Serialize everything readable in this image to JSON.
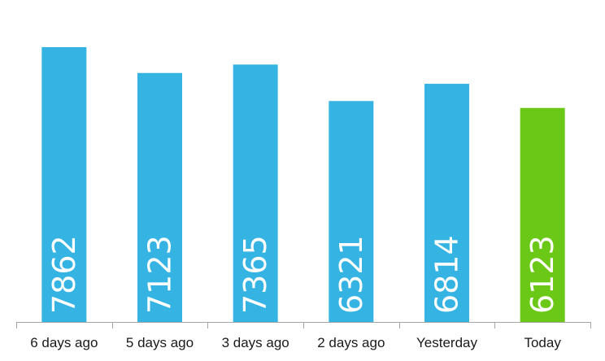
{
  "chart_data": {
    "type": "bar",
    "categories": [
      "6 days ago",
      "5 days ago",
      "3 days ago",
      "2 days ago",
      "Yesterday",
      "Today"
    ],
    "values": [
      7862,
      7123,
      7365,
      6321,
      6814,
      6123
    ],
    "title": "",
    "xlabel": "",
    "ylabel": "",
    "grid": false,
    "legend": false,
    "colors": {
      "bar": "#35B4E4",
      "highlight": "#6CC816",
      "axis": "#A6A6A6"
    },
    "highlight_index": 5
  }
}
